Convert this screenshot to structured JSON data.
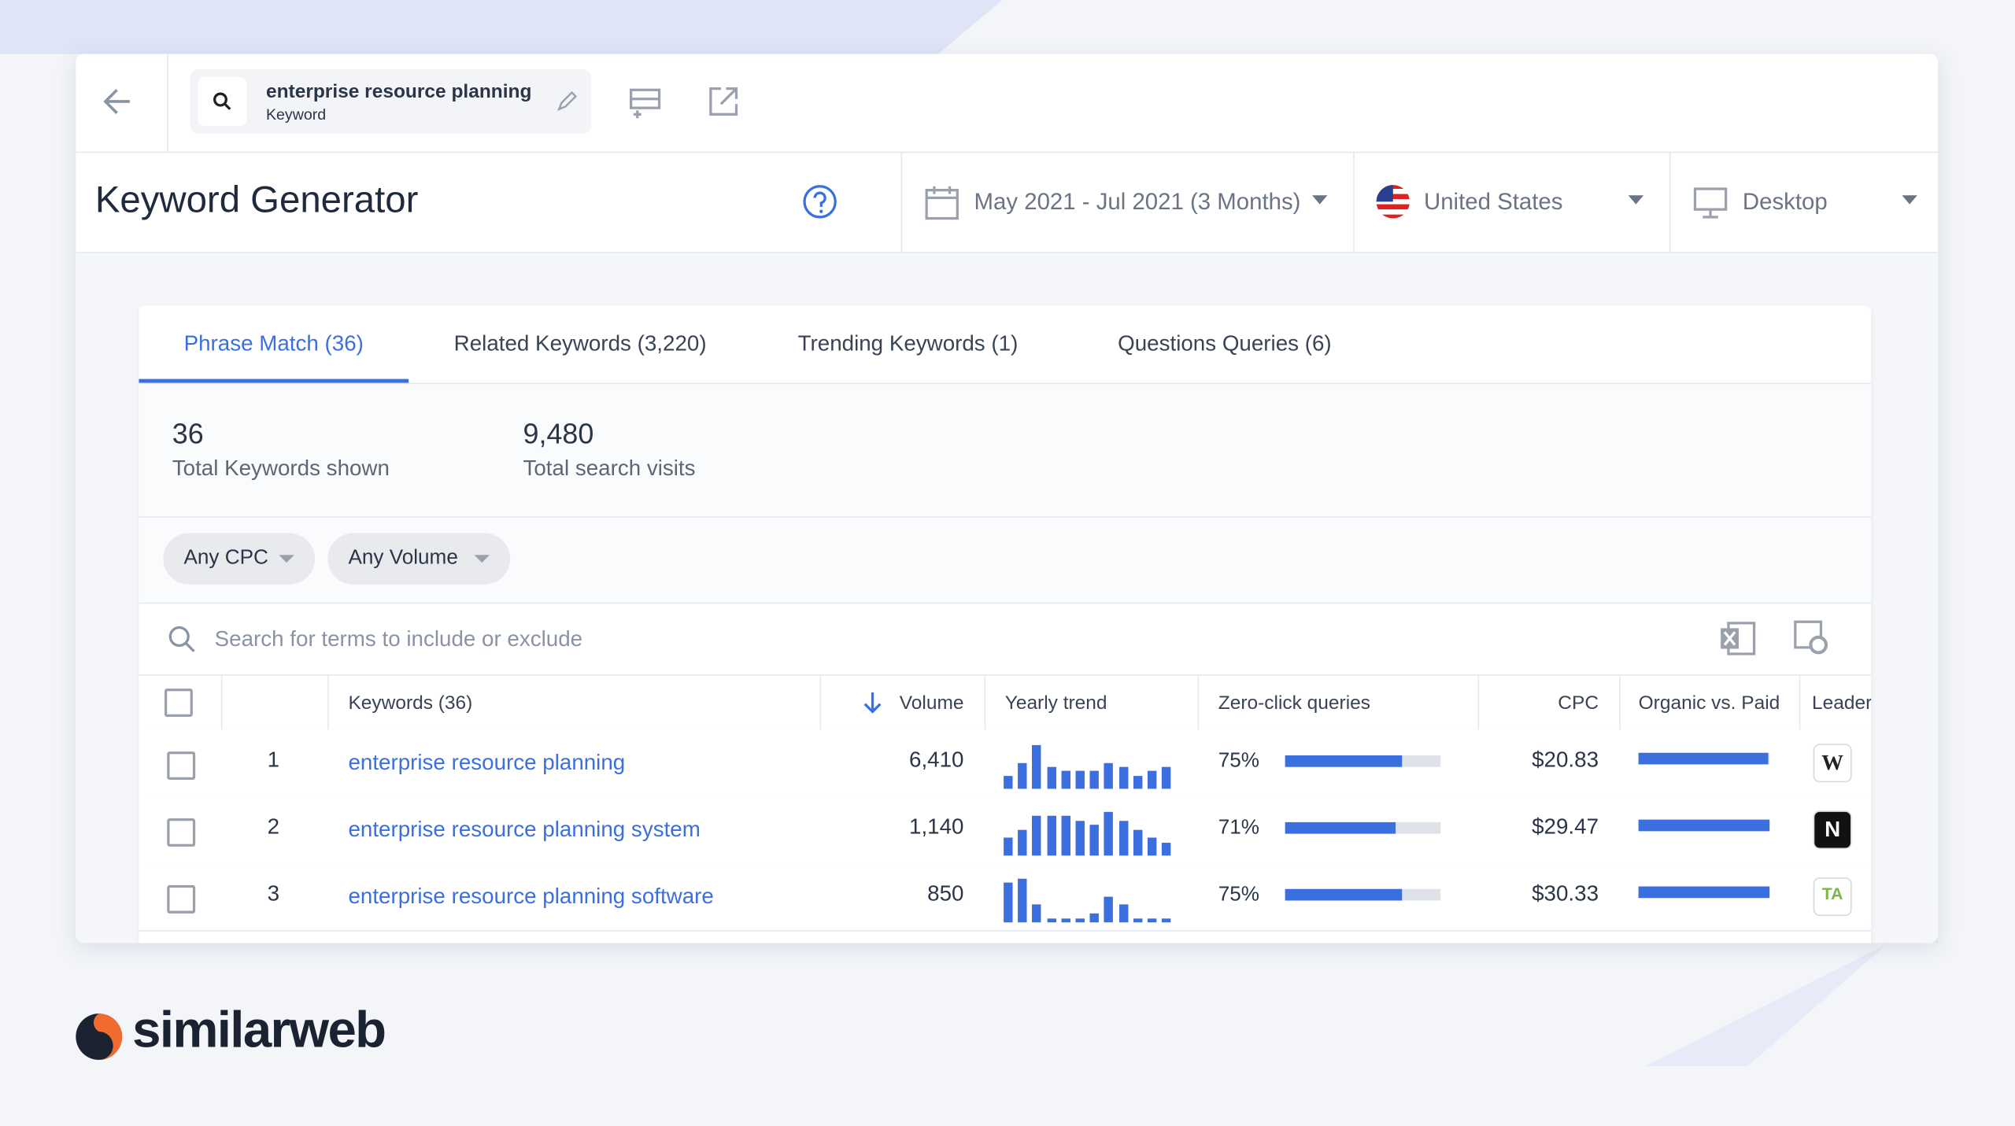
{
  "header": {
    "keyword": "enterprise resource planning",
    "keyword_type": "Keyword",
    "title": "Keyword Generator",
    "date_range": "May 2021 - Jul 2021 (3 Months)",
    "country": "United States",
    "device": "Desktop"
  },
  "tabs": [
    "Phrase Match (36)",
    "Related Keywords (3,220)",
    "Trending Keywords (1)",
    "Questions Queries (6)"
  ],
  "stats": [
    {
      "value": "36",
      "label": "Total Keywords shown"
    },
    {
      "value": "9,480",
      "label": "Total search visits"
    }
  ],
  "filters": [
    "Any CPC",
    "Any Volume"
  ],
  "search_placeholder": "Search for terms to include or exclude",
  "table": {
    "columns": [
      "Keywords (36)",
      "Volume",
      "Yearly trend",
      "Zero-click queries",
      "CPC",
      "Organic vs. Paid",
      "Leader"
    ],
    "rows": [
      {
        "rank": "1",
        "keyword": "enterprise resource planning",
        "volume": "6,410",
        "trend": [
          3,
          6,
          10,
          5,
          4,
          4,
          4,
          6,
          5,
          3,
          4,
          5
        ],
        "zero_click": {
          "value": 75,
          "label": "75%"
        },
        "cpc": "$20.83",
        "organic": 99,
        "leader": "W"
      },
      {
        "rank": "2",
        "keyword": "enterprise resource planning system",
        "volume": "1,140",
        "trend": [
          4,
          6,
          9,
          9,
          9,
          8,
          7,
          10,
          8,
          6,
          4,
          3
        ],
        "zero_click": {
          "value": 71,
          "label": "71%"
        },
        "cpc": "$29.47",
        "organic": 100,
        "leader": "N"
      },
      {
        "rank": "3",
        "keyword": "enterprise resource planning software",
        "volume": "850",
        "trend": [
          9,
          10,
          4,
          1,
          1,
          1,
          2,
          6,
          4,
          1,
          1,
          1
        ],
        "zero_click": {
          "value": 75,
          "label": "75%"
        },
        "cpc": "$30.33",
        "organic": 100,
        "leader": "TA"
      }
    ]
  },
  "brand": "similarweb"
}
